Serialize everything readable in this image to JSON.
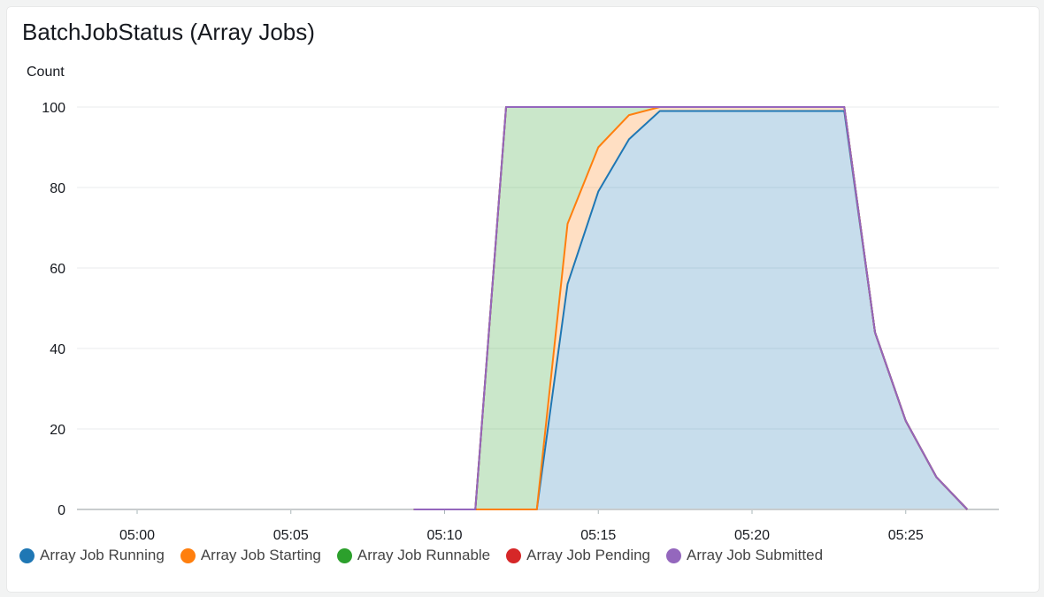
{
  "panel": {
    "title": "BatchJobStatus (Array Jobs)"
  },
  "chart_data": {
    "type": "area",
    "stacked": true,
    "title": "BatchJobStatus (Array Jobs)",
    "ylabel": "Count",
    "xlabel": "",
    "ylim": [
      0,
      100
    ],
    "yticks": [
      "0",
      "20",
      "40",
      "60",
      "80",
      "100"
    ],
    "xticks": [
      "05:00",
      "05:05",
      "05:10",
      "05:15",
      "05:20",
      "05:25"
    ],
    "xlim": [
      "04:58",
      "05:28"
    ],
    "grid": "horizontal",
    "legend_position": "bottom",
    "x": [
      "05:09",
      "05:10",
      "05:11",
      "05:12",
      "05:13",
      "05:14",
      "05:15",
      "05:16",
      "05:17",
      "05:18",
      "05:19",
      "05:20",
      "05:21",
      "05:22",
      "05:23",
      "05:24",
      "05:25",
      "05:26",
      "05:27"
    ],
    "series": [
      {
        "name": "Array Job Running",
        "color": "#1f77b4",
        "values": [
          0,
          0,
          0,
          0,
          0,
          56,
          79,
          92,
          99,
          99,
          99,
          99,
          99,
          99,
          99,
          44,
          22,
          8,
          0
        ]
      },
      {
        "name": "Array Job Starting",
        "color": "#ff7f0e",
        "values": [
          0,
          0,
          0,
          0,
          0,
          71,
          90,
          98,
          100,
          100,
          100,
          100,
          100,
          100,
          100,
          44,
          22,
          8,
          0
        ]
      },
      {
        "name": "Array Job Runnable",
        "color": "#2ca02c",
        "values": [
          0,
          0,
          0,
          100,
          100,
          100,
          100,
          100,
          100,
          100,
          100,
          100,
          100,
          100,
          100,
          44,
          22,
          8,
          0
        ]
      },
      {
        "name": "Array Job Pending",
        "color": "#d62728",
        "values": [
          0,
          0,
          0,
          100,
          100,
          100,
          100,
          100,
          100,
          100,
          100,
          100,
          100,
          100,
          100,
          44,
          22,
          8,
          0
        ]
      },
      {
        "name": "Array Job Submitted",
        "color": "#9467bd",
        "values": [
          0,
          0,
          0,
          100,
          100,
          100,
          100,
          100,
          100,
          100,
          100,
          100,
          100,
          100,
          100,
          44,
          22,
          8,
          0
        ]
      }
    ],
    "baseline_from": "04:58"
  }
}
